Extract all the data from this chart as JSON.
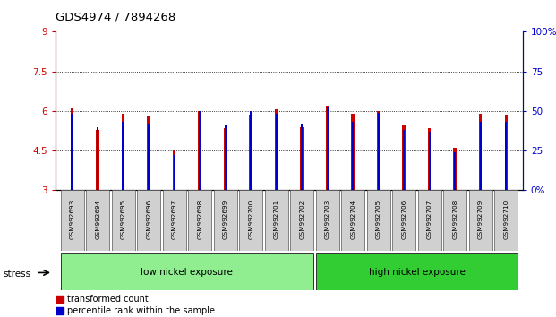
{
  "title": "GDS4974 / 7894268",
  "samples": [
    "GSM992693",
    "GSM992694",
    "GSM992695",
    "GSM992696",
    "GSM992697",
    "GSM992698",
    "GSM992699",
    "GSM992700",
    "GSM992701",
    "GSM992702",
    "GSM992703",
    "GSM992704",
    "GSM992705",
    "GSM992706",
    "GSM992707",
    "GSM992708",
    "GSM992709",
    "GSM992710"
  ],
  "red_values": [
    6.1,
    5.3,
    5.9,
    5.8,
    4.55,
    6.0,
    5.35,
    5.85,
    6.05,
    5.4,
    6.2,
    5.9,
    6.0,
    5.45,
    5.35,
    4.6,
    5.9,
    5.85
  ],
  "blue_values": [
    48,
    40,
    43,
    42,
    22,
    50,
    41,
    50,
    48,
    42,
    52,
    43,
    49,
    38,
    37,
    24,
    43,
    43
  ],
  "ylim_left": [
    3,
    9
  ],
  "ylim_right": [
    0,
    100
  ],
  "yticks_left": [
    3,
    4.5,
    6,
    7.5,
    9
  ],
  "yticks_right": [
    0,
    25,
    50,
    75,
    100
  ],
  "ytick_labels_left": [
    "3",
    "4.5",
    "6",
    "7.5",
    "9"
  ],
  "ytick_labels_right": [
    "0%",
    "25",
    "50",
    "75",
    "100%"
  ],
  "red_color": "#cc0000",
  "blue_color": "#0000cc",
  "group1_label": "low nickel exposure",
  "group2_label": "high nickel exposure",
  "group1_count": 10,
  "group2_count": 8,
  "stress_label": "stress",
  "legend1": "transformed count",
  "legend2": "percentile rank within the sample",
  "grid_dotted_values": [
    4.5,
    6.0,
    7.5
  ],
  "group_bg1": "#90ee90",
  "group_bg2": "#32cd32",
  "label_bg": "#d0d0d0",
  "red_bar_width": 0.12,
  "blue_bar_width": 0.08
}
